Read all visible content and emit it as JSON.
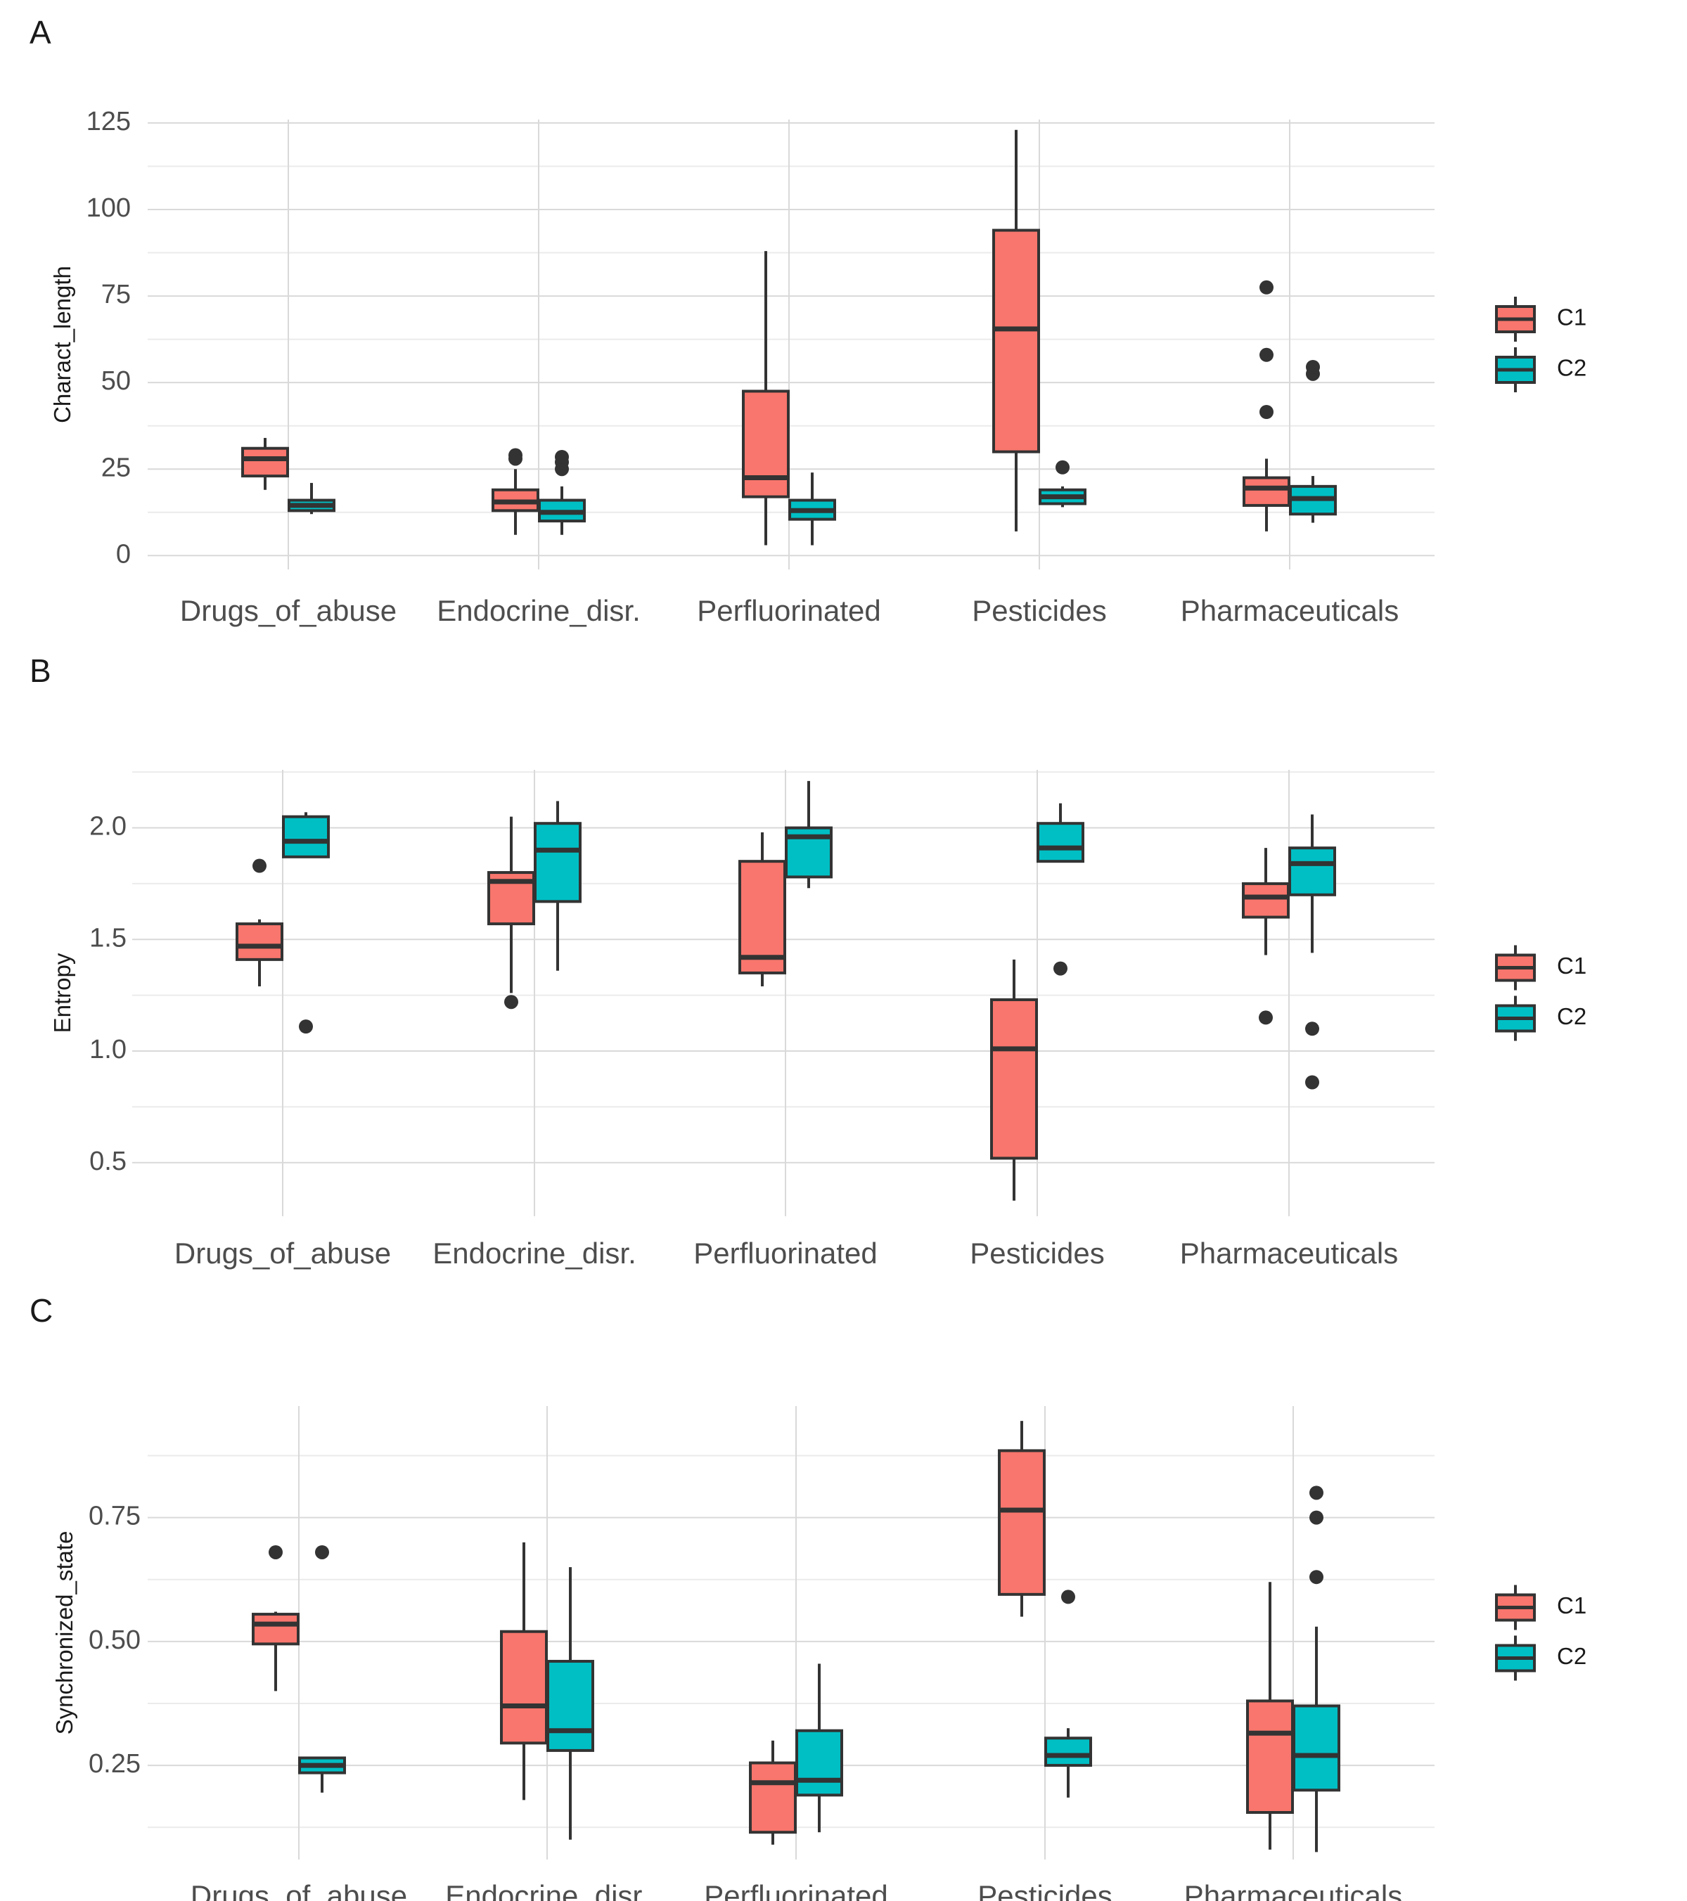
{
  "colors": {
    "C1": "#F8766D",
    "C2": "#00BFC4",
    "outline": "#333333",
    "grid": "#d9d9d9",
    "grid_minor": "#ebebeb"
  },
  "chart_data": [
    {
      "panel": "A",
      "type": "box",
      "title": "",
      "xlabel": "",
      "ylabel": "Charact_length",
      "ylim": [
        -4,
        126
      ],
      "yticks": [
        0,
        25,
        50,
        75,
        100,
        125
      ],
      "ytick_labels": [
        "0",
        "25",
        "50",
        "75",
        "100",
        "125"
      ],
      "categories": [
        "Drugs_of_abuse",
        "Endocrine_disr.",
        "Perfluorinated",
        "Pesticides",
        "Pharmaceuticals"
      ],
      "legend": {
        "position": "right",
        "entries": [
          "C1",
          "C2"
        ]
      },
      "series": [
        {
          "name": "C1",
          "boxes": [
            {
              "lw": 19,
              "q1": 23,
              "med": 28,
              "q3": 31,
              "uw": 34,
              "out": []
            },
            {
              "lw": 6,
              "q1": 13,
              "med": 15.5,
              "q3": 19,
              "uw": 25,
              "out": [
                28,
                29
              ]
            },
            {
              "lw": 3,
              "q1": 17,
              "med": 22.5,
              "q3": 47.5,
              "uw": 88,
              "out": []
            },
            {
              "lw": 7,
              "q1": 30,
              "med": 65.5,
              "q3": 94,
              "uw": 123,
              "out": []
            },
            {
              "lw": 7,
              "q1": 14.5,
              "med": 19.5,
              "q3": 22.5,
              "uw": 28,
              "out": [
                41.5,
                58,
                77.5
              ]
            }
          ]
        },
        {
          "name": "C2",
          "boxes": [
            {
              "lw": 12,
              "q1": 13,
              "med": 14.5,
              "q3": 16,
              "uw": 21,
              "out": []
            },
            {
              "lw": 6,
              "q1": 10,
              "med": 12.5,
              "q3": 16,
              "uw": 20,
              "out": [
                25,
                27,
                28.5
              ]
            },
            {
              "lw": 3,
              "q1": 10.5,
              "med": 13,
              "q3": 16,
              "uw": 24,
              "out": []
            },
            {
              "lw": 14,
              "q1": 15,
              "med": 17,
              "q3": 19,
              "uw": 20,
              "out": [
                25.5
              ]
            },
            {
              "lw": 9.5,
              "q1": 12,
              "med": 16.5,
              "q3": 20,
              "uw": 23,
              "out": [
                52.5,
                54.5
              ]
            }
          ]
        }
      ]
    },
    {
      "panel": "B",
      "type": "box",
      "title": "",
      "xlabel": "",
      "ylabel": "Entropy",
      "ylim": [
        0.26,
        2.26
      ],
      "yticks": [
        0.5,
        1.0,
        1.5,
        2.0
      ],
      "ytick_labels": [
        "0.5",
        "1.0",
        "1.5",
        "2.0"
      ],
      "categories": [
        "Drugs_of_abuse",
        "Endocrine_disr.",
        "Perfluorinated",
        "Pesticides",
        "Pharmaceuticals"
      ],
      "legend": {
        "position": "right",
        "entries": [
          "C1",
          "C2"
        ]
      },
      "series": [
        {
          "name": "C1",
          "boxes": [
            {
              "lw": 1.29,
              "q1": 1.41,
              "med": 1.47,
              "q3": 1.57,
              "uw": 1.59,
              "out": [
                1.83
              ]
            },
            {
              "lw": 1.26,
              "q1": 1.57,
              "med": 1.76,
              "q3": 1.8,
              "uw": 2.05,
              "out": [
                1.22
              ]
            },
            {
              "lw": 1.29,
              "q1": 1.35,
              "med": 1.42,
              "q3": 1.85,
              "uw": 1.98,
              "out": []
            },
            {
              "lw": 0.33,
              "q1": 0.52,
              "med": 1.01,
              "q3": 1.23,
              "uw": 1.41,
              "out": []
            },
            {
              "lw": 1.43,
              "q1": 1.6,
              "med": 1.69,
              "q3": 1.75,
              "uw": 1.91,
              "out": [
                1.15
              ]
            }
          ]
        },
        {
          "name": "C2",
          "boxes": [
            {
              "lw": 1.87,
              "q1": 1.87,
              "med": 1.94,
              "q3": 2.05,
              "uw": 2.07,
              "out": [
                1.11
              ]
            },
            {
              "lw": 1.36,
              "q1": 1.67,
              "med": 1.9,
              "q3": 2.02,
              "uw": 2.12,
              "out": []
            },
            {
              "lw": 1.73,
              "q1": 1.78,
              "med": 1.96,
              "q3": 2.0,
              "uw": 2.21,
              "out": []
            },
            {
              "lw": 1.85,
              "q1": 1.85,
              "med": 1.91,
              "q3": 2.02,
              "uw": 2.11,
              "out": [
                1.37
              ]
            },
            {
              "lw": 1.44,
              "q1": 1.7,
              "med": 1.84,
              "q3": 1.91,
              "uw": 2.06,
              "out": [
                1.1,
                0.86
              ]
            }
          ]
        }
      ]
    },
    {
      "panel": "C",
      "type": "box",
      "title": "",
      "xlabel": "",
      "ylabel": "Synchronized_state",
      "ylim": [
        0.06,
        0.975
      ],
      "yticks": [
        0.25,
        0.5,
        0.75
      ],
      "ytick_labels": [
        "0.25",
        "0.50",
        "0.75"
      ],
      "categories": [
        "Drugs_of_abuse",
        "Endocrine_disr.",
        "Perfluorinated",
        "Pesticides",
        "Pharmaceuticals"
      ],
      "legend": {
        "position": "right",
        "entries": [
          "C1",
          "C2"
        ]
      },
      "series": [
        {
          "name": "C1",
          "boxes": [
            {
              "lw": 0.4,
              "q1": 0.495,
              "med": 0.535,
              "q3": 0.555,
              "uw": 0.56,
              "out": [
                0.68
              ]
            },
            {
              "lw": 0.18,
              "q1": 0.295,
              "med": 0.37,
              "q3": 0.52,
              "uw": 0.7,
              "out": []
            },
            {
              "lw": 0.09,
              "q1": 0.115,
              "med": 0.215,
              "q3": 0.255,
              "uw": 0.3,
              "out": []
            },
            {
              "lw": 0.55,
              "q1": 0.595,
              "med": 0.765,
              "q3": 0.885,
              "uw": 0.945,
              "out": []
            },
            {
              "lw": 0.08,
              "q1": 0.155,
              "med": 0.315,
              "q3": 0.38,
              "uw": 0.62,
              "out": []
            }
          ]
        },
        {
          "name": "C2",
          "boxes": [
            {
              "lw": 0.195,
              "q1": 0.235,
              "med": 0.25,
              "q3": 0.265,
              "uw": 0.265,
              "out": [
                0.68
              ]
            },
            {
              "lw": 0.1,
              "q1": 0.28,
              "med": 0.32,
              "q3": 0.46,
              "uw": 0.65,
              "out": []
            },
            {
              "lw": 0.115,
              "q1": 0.19,
              "med": 0.22,
              "q3": 0.32,
              "uw": 0.455,
              "out": []
            },
            {
              "lw": 0.185,
              "q1": 0.25,
              "med": 0.27,
              "q3": 0.305,
              "uw": 0.325,
              "out": [
                0.59
              ]
            },
            {
              "lw": 0.075,
              "q1": 0.2,
              "med": 0.27,
              "q3": 0.37,
              "uw": 0.53,
              "out": [
                0.63,
                0.75,
                0.8
              ]
            }
          ]
        }
      ]
    }
  ]
}
